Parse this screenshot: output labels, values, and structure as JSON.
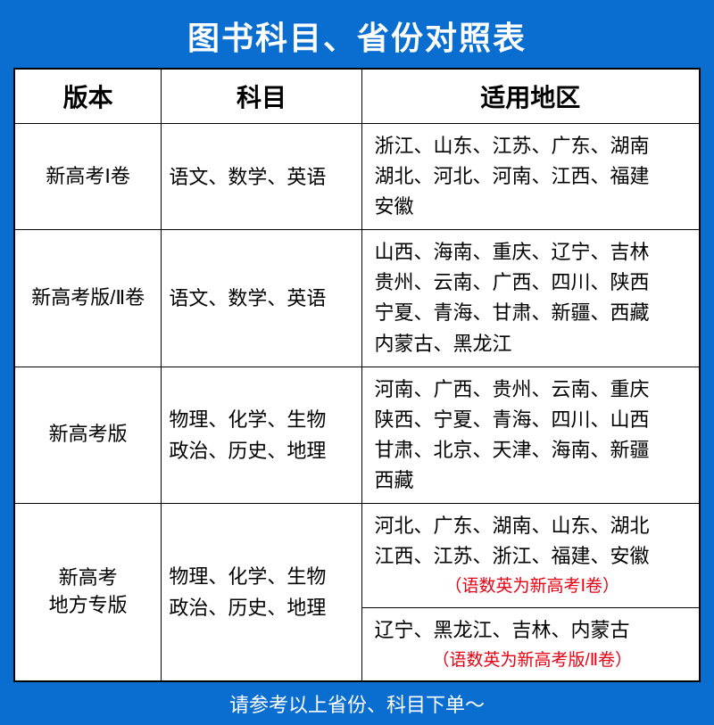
{
  "title": "图书科目、省份对照表",
  "columns": {
    "version": "版本",
    "subject": "科目",
    "region": "适用地区"
  },
  "rows": [
    {
      "version": "新高考Ⅰ卷",
      "subject": "语文、数学、英语",
      "region": "浙江、山东、江苏、广东、湖南\n湖北、河北、河南、江西、福建\n安徽"
    },
    {
      "version": "新高考版/Ⅱ卷",
      "subject": "语文、数学、英语",
      "region": "山西、海南、重庆、辽宁、吉林\n贵州、云南、广西、四川、陕西\n宁夏、青海、甘肃、新疆、西藏\n内蒙古、黑龙江"
    },
    {
      "version": "新高考版",
      "subject": "物理、化学、生物\n政治、历史、地理",
      "region": "河南、广西、贵州、云南、重庆\n陕西、宁夏、青海、四川、山西\n甘肃、北京、天津、海南、新疆\n西藏"
    },
    {
      "version": "新高考\n地方专版",
      "subject": "物理、化学、生物\n政治、历史、地理",
      "region_a": "河北、广东、湖南、山东、湖北\n江西、江苏、浙江、福建、安徽",
      "note_a": "（语数英为新高考Ⅰ卷）",
      "region_b": "辽宁、黑龙江、吉林、内蒙古",
      "note_b": "（语数英为新高考版/Ⅱ卷）"
    }
  ],
  "footer": "请参考以上省份、科目下单～",
  "colors": {
    "background": "#0a6ed1",
    "title_text": "#ffffff",
    "table_bg": "#ffffff",
    "border": "#000000",
    "note": "#e60012",
    "footer_text": "#ffffff"
  }
}
